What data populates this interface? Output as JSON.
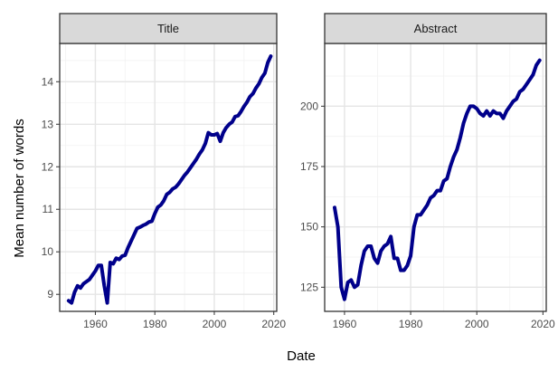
{
  "chart_data": {
    "type": "line",
    "xlabel": "Date",
    "ylabel": "Mean number of words",
    "line_color": "#00008B",
    "grid": true,
    "panels": [
      {
        "title": "Title",
        "xlim": [
          1948,
          2021
        ],
        "ylim": [
          8.6,
          14.9
        ],
        "xticks": [
          1960,
          1980,
          2000,
          2020
        ],
        "yticks": [
          9,
          10,
          11,
          12,
          13,
          14
        ],
        "x": [
          1951,
          1952,
          1953,
          1954,
          1955,
          1956,
          1957,
          1958,
          1959,
          1960,
          1961,
          1962,
          1963,
          1964,
          1965,
          1966,
          1967,
          1968,
          1969,
          1970,
          1971,
          1972,
          1973,
          1974,
          1975,
          1976,
          1977,
          1978,
          1979,
          1980,
          1981,
          1982,
          1983,
          1984,
          1985,
          1986,
          1987,
          1988,
          1989,
          1990,
          1991,
          1992,
          1993,
          1994,
          1995,
          1996,
          1997,
          1998,
          1999,
          2000,
          2001,
          2002,
          2003,
          2004,
          2005,
          2006,
          2007,
          2008,
          2009,
          2010,
          2011,
          2012,
          2013,
          2014,
          2015,
          2016,
          2017,
          2018,
          2019
        ],
        "y": [
          8.85,
          8.8,
          9.05,
          9.2,
          9.15,
          9.25,
          9.3,
          9.35,
          9.45,
          9.55,
          9.68,
          9.68,
          9.2,
          8.8,
          9.75,
          9.72,
          9.85,
          9.82,
          9.9,
          9.92,
          10.1,
          10.25,
          10.4,
          10.55,
          10.58,
          10.62,
          10.65,
          10.7,
          10.72,
          10.9,
          11.05,
          11.1,
          11.2,
          11.35,
          11.4,
          11.48,
          11.52,
          11.6,
          11.7,
          11.8,
          11.88,
          11.98,
          12.08,
          12.18,
          12.3,
          12.4,
          12.55,
          12.8,
          12.75,
          12.75,
          12.78,
          12.6,
          12.8,
          12.92,
          13.0,
          13.05,
          13.18,
          13.2,
          13.3,
          13.42,
          13.52,
          13.65,
          13.72,
          13.85,
          13.95,
          14.1,
          14.2,
          14.45,
          14.6
        ]
      },
      {
        "title": "Abstract",
        "xlim": [
          1954,
          2021
        ],
        "ylim": [
          115,
          226
        ],
        "xticks": [
          1960,
          1980,
          2000,
          2020
        ],
        "yticks": [
          125,
          150,
          175,
          200
        ],
        "x": [
          1957,
          1958,
          1959,
          1960,
          1961,
          1962,
          1963,
          1964,
          1965,
          1966,
          1967,
          1968,
          1969,
          1970,
          1971,
          1972,
          1973,
          1974,
          1975,
          1976,
          1977,
          1978,
          1979,
          1980,
          1981,
          1982,
          1983,
          1984,
          1985,
          1986,
          1987,
          1988,
          1989,
          1990,
          1991,
          1992,
          1993,
          1994,
          1995,
          1996,
          1997,
          1998,
          1999,
          2000,
          2001,
          2002,
          2003,
          2004,
          2005,
          2006,
          2007,
          2008,
          2009,
          2010,
          2011,
          2012,
          2013,
          2014,
          2015,
          2016,
          2017,
          2018,
          2019
        ],
        "y": [
          158,
          150,
          125,
          120,
          127,
          128,
          125,
          126,
          134,
          140,
          142,
          142,
          137,
          135,
          140,
          142,
          143,
          146,
          137,
          137,
          132,
          132,
          134,
          138,
          150,
          155,
          155,
          157,
          159,
          162,
          163,
          165,
          165,
          169,
          170,
          175,
          179,
          182,
          187,
          193,
          197,
          200,
          200,
          199,
          197,
          196,
          198,
          196,
          198,
          197,
          197,
          195,
          198,
          200,
          202,
          203,
          206,
          207,
          209,
          211,
          213,
          217,
          219
        ]
      }
    ]
  }
}
